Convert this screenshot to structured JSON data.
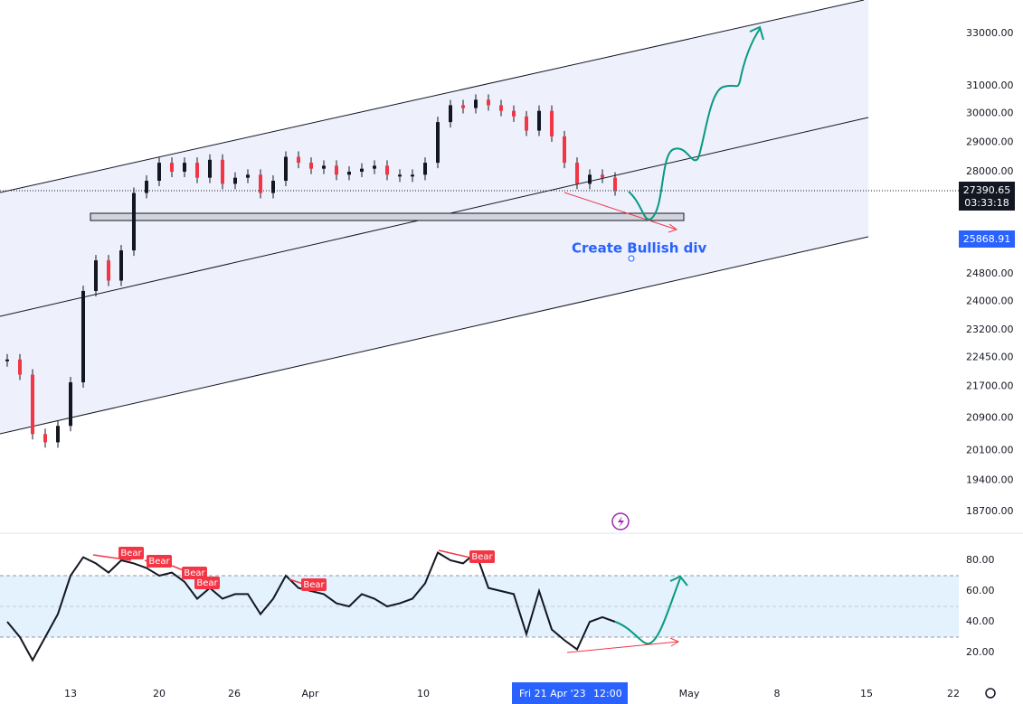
{
  "price_axis": {
    "labels": [
      "33000.00",
      "31000.00",
      "30000.00",
      "29000.00",
      "28000.00",
      "24800.00",
      "24000.00",
      "23200.00",
      "22450.00",
      "21700.00",
      "20900.00",
      "20100.00",
      "19400.00",
      "18700.00"
    ],
    "last_price": "27390.65",
    "countdown": "03:33:18",
    "marked_price": "25868.91"
  },
  "indicator_axis": {
    "labels": [
      "80.00",
      "60.00",
      "40.00",
      "20.00"
    ]
  },
  "time_axis": {
    "labels": [
      "13",
      "20",
      "26",
      "Apr",
      "10",
      "May",
      "8",
      "15",
      "22"
    ],
    "crosshair_date": "Fri 21 Apr '23",
    "crosshair_time": "12:00"
  },
  "annotations": {
    "note": "Create Bullish div",
    "bear_labels": [
      "Bear",
      "Bear",
      "Bear",
      "Bear",
      "Bear",
      "Bear"
    ]
  },
  "price_series": [
    22400,
    22000,
    20500,
    20300,
    20700,
    21800,
    24300,
    25200,
    24600,
    25500,
    27300,
    27700,
    28300,
    28000,
    28300,
    27800,
    28400,
    27600,
    27800,
    27900,
    27300,
    27700,
    28500,
    28300,
    28100,
    28200,
    27900,
    28000,
    28100,
    28200,
    27900,
    27900,
    27900,
    28300,
    29700,
    30300,
    30200,
    30500,
    30300,
    30100,
    29900,
    29400,
    30100,
    29200,
    28300,
    27600,
    27900,
    27800,
    27390.65
  ],
  "rsi_series": [
    40,
    30,
    15,
    30,
    45,
    70,
    82,
    78,
    72,
    80,
    78,
    75,
    70,
    72,
    66,
    55,
    62,
    55,
    58,
    58,
    45,
    55,
    70,
    62,
    60,
    58,
    52,
    50,
    58,
    55,
    50,
    52,
    55,
    65,
    85,
    80,
    78,
    85,
    62,
    60,
    58,
    32,
    60,
    35,
    28,
    22,
    40,
    43,
    40
  ]
}
